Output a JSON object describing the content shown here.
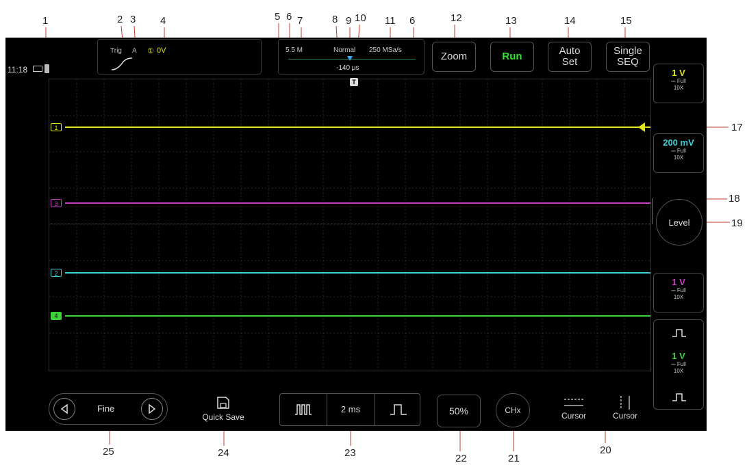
{
  "callouts": {
    "n1": "1",
    "n2": "2",
    "n3": "3",
    "n4": "4",
    "n5": "5",
    "n6a": "6",
    "n7": "7",
    "n8": "8",
    "n9": "9",
    "n10": "10",
    "n11": "11",
    "n6b": "6",
    "n12": "12",
    "n13": "13",
    "n14": "14",
    "n15": "15",
    "n17": "17",
    "n18": "18",
    "n19": "19",
    "n20": "20",
    "n21": "21",
    "n22": "22",
    "n23": "23",
    "n24": "24",
    "n25": "25"
  },
  "status": {
    "time": "11:18"
  },
  "trigger": {
    "label": "Trig",
    "source": "A",
    "channel": "①",
    "level": "0V"
  },
  "timebase_bar": {
    "memory": "5.5 M",
    "mode": "Normal",
    "sample_rate": "250 MSa/s",
    "offset": "-140 μs",
    "trigger_marker": "T"
  },
  "top_buttons": {
    "zoom": "Zoom",
    "run": "Run",
    "auto_line1": "Auto",
    "auto_line2": "Set",
    "single_line1": "Single",
    "single_line2": "SEQ"
  },
  "channels": [
    {
      "id": "1",
      "marker": "1",
      "scale": "1 V",
      "bw": "Full",
      "probe": "10X",
      "color": "#e6e619"
    },
    {
      "id": "2",
      "marker": "2",
      "scale": "200 mV",
      "bw": "Full",
      "probe": "10X",
      "color": "#3fd0d8"
    },
    {
      "id": "3",
      "marker": "3",
      "scale": "1 V",
      "bw": "Full",
      "probe": "10X",
      "color": "#c83cc8"
    },
    {
      "id": "4",
      "marker": "4",
      "scale": "1 V",
      "bw": "Full",
      "probe": "10X",
      "color": "#3cd23c"
    }
  ],
  "level_button": "Level",
  "bottom": {
    "fine": "Fine",
    "quick_save": "Quick Save",
    "time_div": "2 ms",
    "fifty": "50%",
    "chx": "CHx",
    "cursor_h": "Cursor",
    "cursor_v": "Cursor"
  },
  "colors": {
    "accent_run": "#2ee62e",
    "background": "#000000",
    "trig_level": "#e6e619"
  }
}
